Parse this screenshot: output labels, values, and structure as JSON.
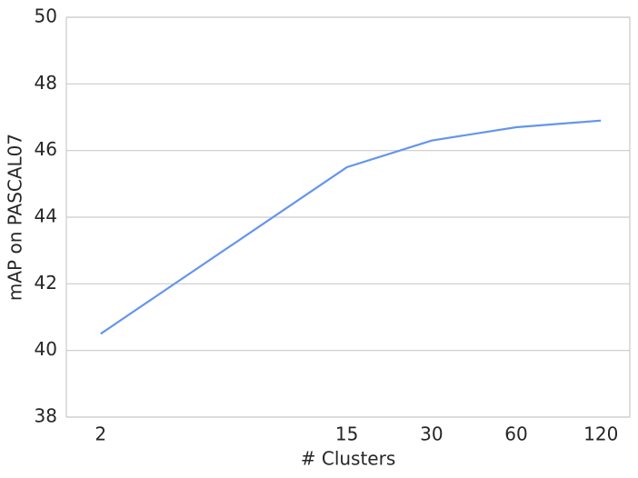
{
  "chart_data": {
    "type": "line",
    "xlabel": "# Clusters",
    "ylabel": "mAP on PASCAL07",
    "x": [
      2,
      15,
      30,
      60,
      120
    ],
    "values": [
      40.5,
      45.5,
      46.3,
      46.7,
      46.9
    ],
    "color": "#6495ed",
    "xscale": "log",
    "xlim": [
      1.51,
      152
    ],
    "xticks": [
      2,
      15,
      30,
      60,
      120
    ],
    "ylim": [
      38,
      50
    ],
    "yticks": [
      38,
      40,
      42,
      44,
      46,
      48,
      50
    ],
    "grid": "y"
  }
}
